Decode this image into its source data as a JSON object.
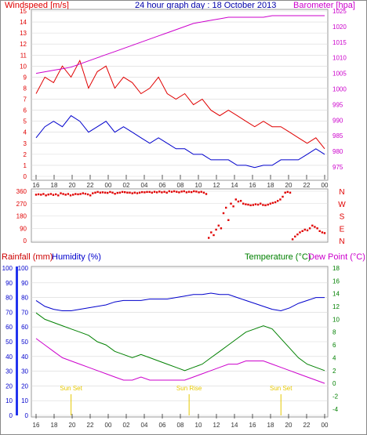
{
  "header": {
    "windspeed_label": "Windspeed [m/s]",
    "title": "24 hour graph day : 18 October 2013",
    "barometer_label": "Barometer [hpa]"
  },
  "colors": {
    "wind": "#e00000",
    "gust": "#e00000",
    "avg_wind": "#0000cc",
    "barometer": "#cc00cc",
    "direction": "#e00000",
    "rain": "#cc0000",
    "humidity": "#0000cc",
    "temperature": "#008000",
    "dewpoint": "#cc00cc",
    "sun": "#e6c800",
    "axis_left_bar": "#2233ee"
  },
  "x_ticks": [
    "16",
    "18",
    "20",
    "22",
    "00",
    "02",
    "04",
    "06",
    "08",
    "10",
    "12",
    "14",
    "16",
    "18",
    "20",
    "22",
    "00"
  ],
  "wind_chart": {
    "type": "line",
    "y_ticks": [
      "15",
      "14",
      "13",
      "12",
      "11",
      "10",
      "9",
      "8",
      "7",
      "6",
      "5",
      "4",
      "3",
      "2",
      "1",
      "0"
    ],
    "y_range": [
      0,
      15
    ],
    "baro_ticks": [
      "1025",
      "1020",
      "1015",
      "1010",
      "1005",
      "1000",
      "995",
      "990",
      "985",
      "980",
      "975"
    ],
    "baro_range": [
      972,
      1025
    ],
    "hours_shown": 33,
    "series": [
      {
        "name": "Gust",
        "color": "#e00000",
        "values": [
          7.5,
          9,
          8.5,
          10,
          9,
          10.5,
          8,
          9.5,
          10,
          8,
          9,
          8.5,
          7.5,
          8,
          9,
          7.5,
          7,
          7.5,
          6.5,
          7,
          6,
          5.5,
          6,
          5.5,
          5,
          4.5,
          5,
          4.5,
          4.5,
          4,
          3.5,
          3,
          3.5,
          2.5
        ]
      },
      {
        "name": "Average",
        "color": "#0000cc",
        "values": [
          3.5,
          4.5,
          5,
          4.5,
          5.5,
          5,
          4,
          4.5,
          5,
          4,
          4.5,
          4,
          3.5,
          3,
          3.5,
          3,
          2.5,
          2.5,
          2,
          2,
          1.5,
          1.5,
          1.5,
          1,
          1,
          0.8,
          1,
          1,
          1.5,
          1.5,
          1.5,
          2,
          2.5,
          2
        ]
      },
      {
        "name": "Barometer",
        "color": "#cc00cc",
        "axis": "right",
        "values": [
          1005,
          1005.5,
          1006,
          1006.5,
          1007,
          1008,
          1009,
          1010,
          1011,
          1012,
          1013,
          1014,
          1015,
          1016,
          1017,
          1018,
          1019,
          1020,
          1021,
          1021.5,
          1022,
          1022.5,
          1023,
          1023,
          1023,
          1023,
          1023,
          1023.5,
          1023.5,
          1023.5,
          1023.5,
          1023.5,
          1023.5,
          1023.5
        ]
      }
    ]
  },
  "direction_chart": {
    "type": "scatter",
    "y_ticks": [
      "360",
      "270",
      "180",
      "90",
      "0"
    ],
    "y_range": [
      0,
      360
    ],
    "compass": [
      "N",
      "W",
      "S",
      "E",
      "N"
    ],
    "points": [
      [
        0,
        335
      ],
      [
        1,
        338
      ],
      [
        2,
        335
      ],
      [
        3,
        340
      ],
      [
        4,
        330
      ],
      [
        5,
        336
      ],
      [
        6,
        340
      ],
      [
        7,
        333
      ],
      [
        8,
        338
      ],
      [
        9,
        330
      ],
      [
        10,
        345
      ],
      [
        11,
        340
      ],
      [
        12,
        335
      ],
      [
        13,
        340
      ],
      [
        14,
        330
      ],
      [
        15,
        335
      ],
      [
        16,
        340
      ],
      [
        17,
        338
      ],
      [
        18,
        340
      ],
      [
        19,
        345
      ],
      [
        20,
        342
      ],
      [
        21,
        337
      ],
      [
        22,
        330
      ],
      [
        23,
        345
      ],
      [
        24,
        350
      ],
      [
        25,
        355
      ],
      [
        26,
        350
      ],
      [
        27,
        352
      ],
      [
        28,
        350
      ],
      [
        29,
        348
      ],
      [
        30,
        355
      ],
      [
        31,
        350
      ],
      [
        32,
        342
      ],
      [
        33,
        348
      ],
      [
        34,
        350
      ],
      [
        35,
        355
      ],
      [
        36,
        353
      ],
      [
        37,
        350
      ],
      [
        38,
        350
      ],
      [
        39,
        345
      ],
      [
        40,
        350
      ],
      [
        41,
        346
      ],
      [
        42,
        350
      ],
      [
        43,
        354
      ],
      [
        44,
        352
      ],
      [
        45,
        355
      ],
      [
        46,
        355
      ],
      [
        47,
        350
      ],
      [
        48,
        356
      ],
      [
        49,
        352
      ],
      [
        50,
        358
      ],
      [
        51,
        352
      ],
      [
        52,
        356
      ],
      [
        53,
        350
      ],
      [
        54,
        360
      ],
      [
        55,
        356
      ],
      [
        56,
        360
      ],
      [
        57,
        356
      ],
      [
        58,
        352
      ],
      [
        59,
        358
      ],
      [
        60,
        360
      ],
      [
        61,
        352
      ],
      [
        62,
        356
      ],
      [
        63,
        354
      ],
      [
        64,
        360
      ],
      [
        65,
        358
      ],
      [
        66,
        352
      ],
      [
        67,
        356
      ],
      [
        68,
        350
      ],
      [
        69,
        340
      ],
      [
        70,
        20
      ],
      [
        71,
        60
      ],
      [
        72,
        40
      ],
      [
        73,
        80
      ],
      [
        74,
        110
      ],
      [
        75,
        90
      ],
      [
        76,
        200
      ],
      [
        77,
        240
      ],
      [
        78,
        150
      ],
      [
        79,
        270
      ],
      [
        80,
        250
      ],
      [
        81,
        300
      ],
      [
        82,
        285
      ],
      [
        83,
        290
      ],
      [
        84,
        270
      ],
      [
        85,
        265
      ],
      [
        86,
        262
      ],
      [
        87,
        258
      ],
      [
        88,
        260
      ],
      [
        89,
        265
      ],
      [
        90,
        262
      ],
      [
        91,
        270
      ],
      [
        92,
        260
      ],
      [
        93,
        258
      ],
      [
        94,
        262
      ],
      [
        95,
        270
      ],
      [
        96,
        275
      ],
      [
        97,
        280
      ],
      [
        98,
        290
      ],
      [
        99,
        300
      ],
      [
        100,
        320
      ],
      [
        101,
        350
      ],
      [
        102,
        355
      ],
      [
        103,
        350
      ],
      [
        104,
        10
      ],
      [
        105,
        30
      ],
      [
        106,
        45
      ],
      [
        107,
        60
      ],
      [
        108,
        70
      ],
      [
        109,
        80
      ],
      [
        110,
        75
      ],
      [
        111,
        90
      ],
      [
        112,
        110
      ],
      [
        113,
        100
      ],
      [
        114,
        90
      ],
      [
        115,
        70
      ],
      [
        116,
        60
      ],
      [
        117,
        55
      ]
    ]
  },
  "lower_chart": {
    "type": "line",
    "rainfall_label": "Rainfall (mm)",
    "humidity_label": "Humidity (%)",
    "temperature_label": "Temperature (°C)",
    "dewpoint_label": "Dew Point (°C)",
    "left_ticks": [
      "100",
      "90",
      "80",
      "70",
      "60",
      "50",
      "40",
      "30",
      "20",
      "10",
      "0"
    ],
    "humidity_ticks": [
      "100",
      "90",
      "80",
      "70",
      "60",
      "50",
      "40",
      "30",
      "20",
      "10",
      "0"
    ],
    "temp_ticks": [
      "18",
      "16",
      "14",
      "12",
      "10",
      "8",
      "6",
      "4",
      "2",
      "0",
      "-2",
      "-4"
    ],
    "humidity_range": [
      0,
      100
    ],
    "temp_range": [
      -5,
      18
    ],
    "sun_events": [
      {
        "label": "Sun Set",
        "hour": 4
      },
      {
        "label": "Sun Rise",
        "hour": 17.5
      },
      {
        "label": "Sun Set",
        "hour": 28
      }
    ],
    "series": [
      {
        "name": "Humidity",
        "color": "#0000cc",
        "values": [
          78,
          74,
          72,
          71,
          71,
          72,
          73,
          74,
          75,
          77,
          78,
          78,
          78,
          79,
          79,
          79,
          80,
          81,
          82,
          82,
          83,
          82,
          82,
          80,
          78,
          76,
          74,
          72,
          71,
          73,
          76,
          78,
          80,
          80
        ]
      },
      {
        "name": "Temperature",
        "color": "#008000",
        "values": [
          11,
          10,
          9.5,
          9,
          8.5,
          8,
          7.5,
          6.5,
          6,
          5,
          4.5,
          4,
          4.5,
          4,
          3.5,
          3,
          2.5,
          2,
          2.5,
          3,
          4,
          5,
          6,
          7,
          8,
          8.5,
          9,
          8.5,
          7,
          5.5,
          4,
          3,
          2.5,
          2
        ]
      },
      {
        "name": "Dew Point",
        "color": "#cc00cc",
        "values": [
          7,
          6,
          5,
          4,
          3.5,
          3,
          2.5,
          2,
          1.5,
          1,
          0.5,
          0.5,
          1,
          0.5,
          0.5,
          0.5,
          0.5,
          0.5,
          1,
          1.5,
          2,
          2.5,
          3,
          3,
          3.5,
          3.5,
          3.5,
          3,
          2.5,
          2,
          1.5,
          1,
          0.5,
          0
        ]
      }
    ]
  }
}
